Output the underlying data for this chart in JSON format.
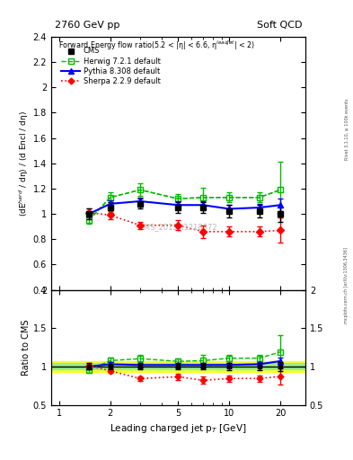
{
  "title_left": "2760 GeV pp",
  "title_right": "Soft QCD",
  "ylabel_main": "(dE$^{hard}$ / dη) / (d Encl / dη)",
  "ylabel_ratio": "Ratio to CMS",
  "xlabel": "Leading charged jet p$_{T}$ [GeV]",
  "watermark": "CMS_2013_I1218372",
  "right_label": "mcplots.cern.ch [arXiv:1306.3436]",
  "rivet_label": "Rivet 3.1.10, ≥ 100k events",
  "xdata": [
    1.5,
    2.0,
    3.0,
    5.0,
    7.0,
    10.0,
    15.0,
    20.0
  ],
  "cms_y": [
    1.0,
    1.05,
    1.08,
    1.05,
    1.05,
    1.02,
    1.02,
    1.0
  ],
  "cms_yerr": [
    0.04,
    0.04,
    0.04,
    0.04,
    0.04,
    0.05,
    0.05,
    0.06
  ],
  "herwig_y": [
    0.95,
    1.13,
    1.19,
    1.12,
    1.13,
    1.13,
    1.13,
    1.19
  ],
  "herwig_yerr": [
    0.03,
    0.04,
    0.05,
    0.04,
    0.08,
    0.04,
    0.04,
    0.22
  ],
  "pythia_y": [
    1.0,
    1.08,
    1.1,
    1.07,
    1.07,
    1.04,
    1.05,
    1.07
  ],
  "pythia_yerr": [
    0.02,
    0.03,
    0.03,
    0.03,
    0.03,
    0.03,
    0.03,
    0.05
  ],
  "sherpa_y": [
    1.01,
    0.99,
    0.91,
    0.91,
    0.86,
    0.86,
    0.86,
    0.87
  ],
  "sherpa_yerr": [
    0.03,
    0.03,
    0.03,
    0.04,
    0.05,
    0.04,
    0.04,
    0.1
  ],
  "cms_color": "#000000",
  "herwig_color": "#00bb00",
  "pythia_color": "#0000ff",
  "sherpa_color": "#ff0000",
  "band_yellow": [
    0.93,
    1.07
  ],
  "band_green": [
    0.96,
    1.04
  ],
  "xlim": [
    0.9,
    28
  ],
  "ylim_main": [
    0.4,
    2.4
  ],
  "ylim_ratio": [
    0.5,
    2.0
  ]
}
